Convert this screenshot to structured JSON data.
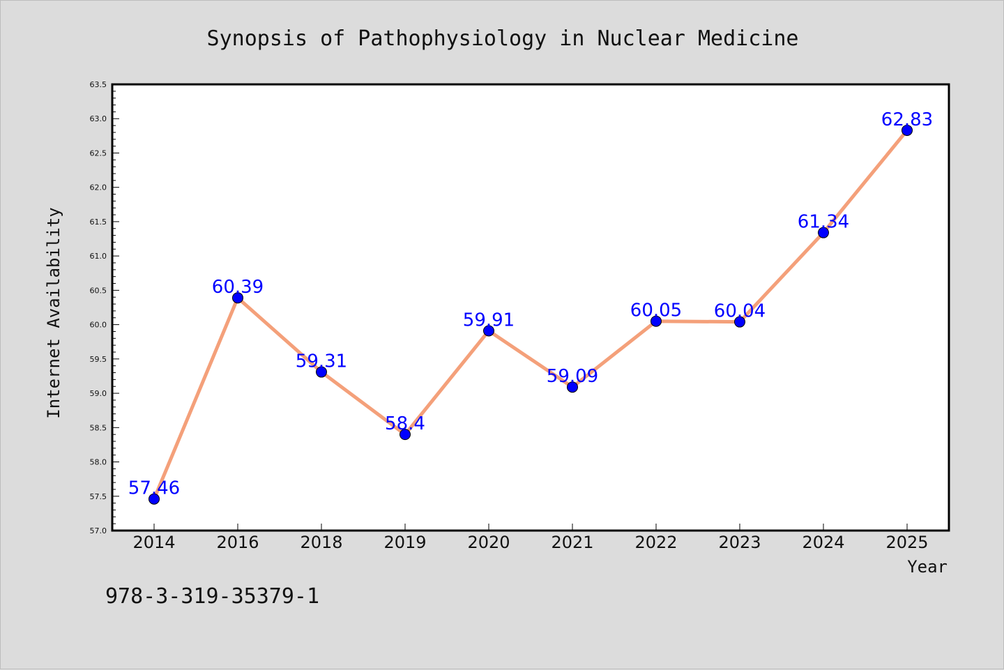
{
  "chart_data": {
    "type": "line",
    "title": "Synopsis of Pathophysiology in Nuclear Medicine",
    "xlabel": "Year",
    "ylabel": "Internet Availability",
    "categories": [
      "2014",
      "2016",
      "2018",
      "2019",
      "2020",
      "2021",
      "2022",
      "2023",
      "2024",
      "2025"
    ],
    "series": [
      {
        "values": [
          57.46,
          60.39,
          59.31,
          58.4,
          59.91,
          59.09,
          60.05,
          60.04,
          61.34,
          62.83
        ],
        "data_labels": [
          "57.46",
          "60.39",
          "59.31",
          "58.4",
          "59.91",
          "59.09",
          "60.05",
          "60.04",
          "61.34",
          "62.83"
        ]
      }
    ],
    "ylim": [
      57.0,
      63.5
    ],
    "yticks": [
      "57.0",
      "57.5",
      "58.0",
      "58.5",
      "59.0",
      "59.5",
      "60.0",
      "60.5",
      "61.0",
      "61.5",
      "62.0",
      "62.5",
      "63.0",
      "63.5"
    ],
    "grid": false,
    "legend": "none",
    "line_color": "#f4a07a",
    "marker_color": "#0000ff",
    "label_color": "#0000ff"
  },
  "footer_text": "978-3-319-35379-1"
}
